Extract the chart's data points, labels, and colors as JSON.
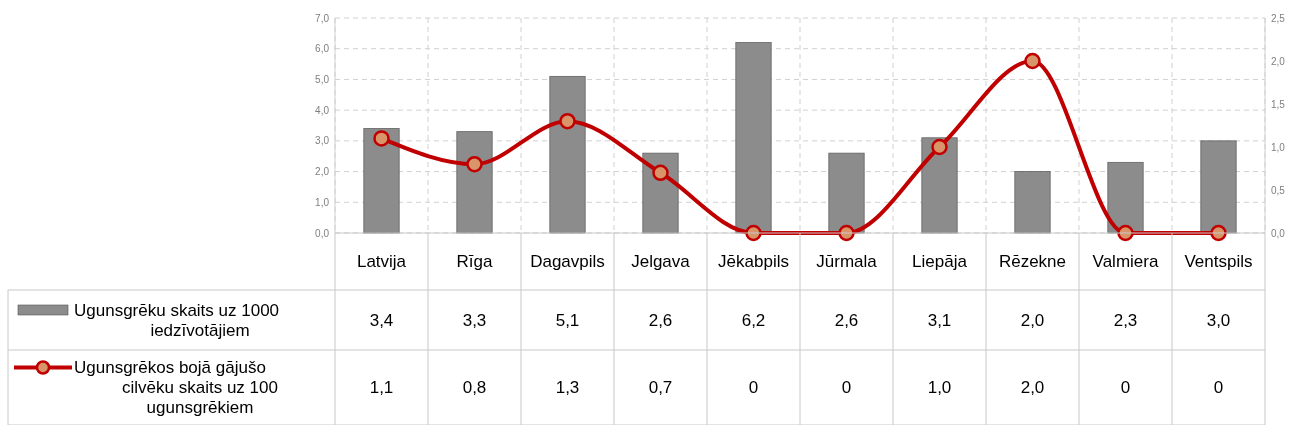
{
  "chart_data": {
    "type": "bar",
    "categories": [
      "Latvija",
      "Rīga",
      "Dagavpils",
      "Jelgava",
      "Jēkabpils",
      "Jūrmala",
      "Liepāja",
      "Rēzekne",
      "Valmiera",
      "Ventspils"
    ],
    "series": [
      {
        "name": "Ugunsgrēku skaits uz 1000 iedzīvotājiem",
        "color": "#8c8c8c",
        "values": [
          3.4,
          3.3,
          5.1,
          2.6,
          6.2,
          2.6,
          3.1,
          2.0,
          2.3,
          3.0
        ],
        "value_labels": [
          "3,4",
          "3,3",
          "5,1",
          "2,6",
          "6,2",
          "2,6",
          "3,1",
          "2,0",
          "2,3",
          "3,0"
        ]
      },
      {
        "name": "Ugunsgrēkos bojā gājušo cilvēku skaits uz 100 ugunsgrēkiem",
        "type": "line",
        "axis": "y2",
        "color": "#c00000",
        "values": [
          1.1,
          0.8,
          1.3,
          0.7,
          0,
          0,
          1.0,
          2.0,
          0,
          0
        ],
        "value_labels": [
          "1,1",
          "0,8",
          "1,3",
          "0,7",
          "0",
          "0",
          "1,0",
          "2,0",
          "0",
          "0"
        ]
      }
    ],
    "ylim": [
      0,
      7
    ],
    "yticks": [
      {
        "value": 0,
        "label": "0,0"
      },
      {
        "value": 1,
        "label": "1,0"
      },
      {
        "value": 2,
        "label": "2,0"
      },
      {
        "value": 3,
        "label": "3,0"
      },
      {
        "value": 4,
        "label": "4,0"
      },
      {
        "value": 5,
        "label": "5,0"
      },
      {
        "value": 6,
        "label": "6,0"
      },
      {
        "value": 7,
        "label": "7,0"
      }
    ],
    "y2lim": [
      0,
      2.5
    ],
    "y2ticks": [
      {
        "value": 0,
        "label": "0,0"
      },
      {
        "value": 0.5,
        "label": "0,5"
      },
      {
        "value": 1,
        "label": "1,0"
      },
      {
        "value": 1.5,
        "label": "1,5"
      },
      {
        "value": 2,
        "label": "2,0"
      },
      {
        "value": 2.5,
        "label": "2,5"
      }
    ],
    "grid": true,
    "legend": "bottom left",
    "marker": "circle",
    "line_style": "solid"
  }
}
